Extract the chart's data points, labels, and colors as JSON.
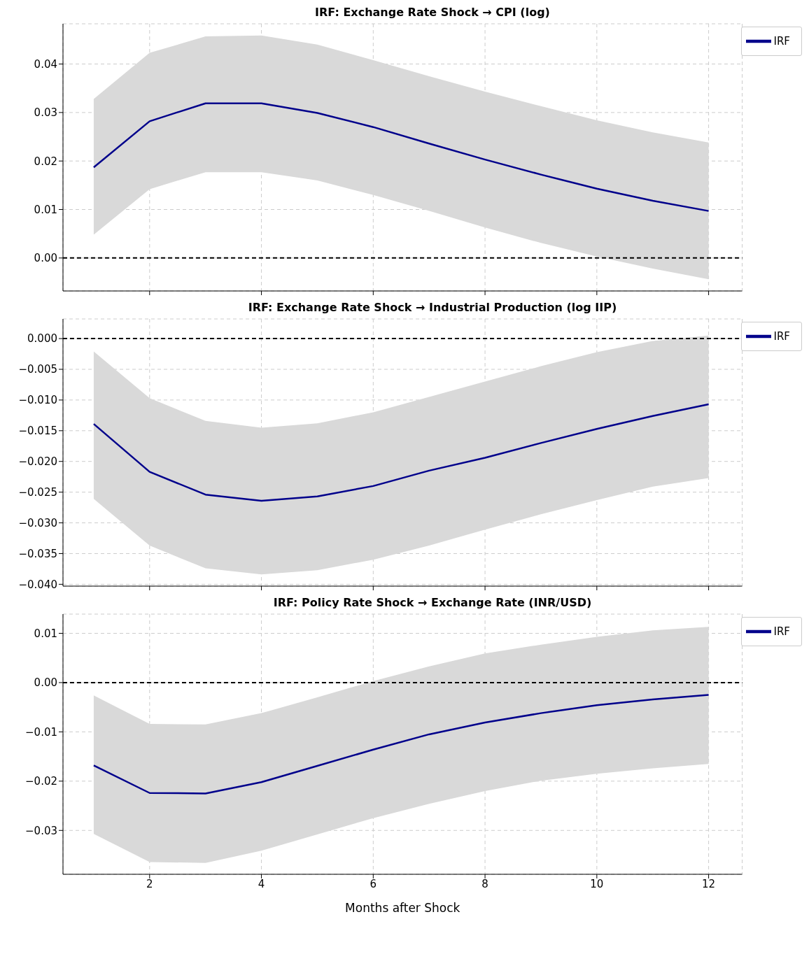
{
  "chart_data": [
    {
      "type": "line",
      "title": "IRF: Exchange Rate Shock → CPI (log)",
      "x": [
        1,
        2,
        3,
        4,
        5,
        6,
        7,
        8,
        9,
        10,
        11,
        12
      ],
      "xlim": [
        0.45,
        12.6
      ],
      "xticks": [
        2,
        4,
        6,
        8,
        10,
        12
      ],
      "ylim": [
        -0.0068,
        0.0483
      ],
      "yticks": [
        {
          "value": 0,
          "label": "0.00"
        },
        {
          "value": 0.01,
          "label": "0.01"
        },
        {
          "value": 0.02,
          "label": "0.02"
        },
        {
          "value": 0.03,
          "label": "0.03"
        },
        {
          "value": 0.04,
          "label": "0.04"
        }
      ],
      "tick_labels": "y",
      "grid": true,
      "legend": "top right",
      "marker": "none",
      "line_style": "solid",
      "series": [
        {
          "name": "IRF",
          "color": "#00008b",
          "values": [
            0.0187,
            0.0282,
            0.0319,
            0.0319,
            0.0299,
            0.027,
            0.0236,
            0.0203,
            0.0172,
            0.0143,
            0.0118,
            0.0097
          ],
          "lower": [
            0.0048,
            0.0142,
            0.0177,
            0.0177,
            0.016,
            0.013,
            0.0097,
            0.0063,
            0.0031,
            0.0003,
            -0.0022,
            -0.0044
          ],
          "upper": [
            0.0328,
            0.0423,
            0.0457,
            0.0459,
            0.044,
            0.0408,
            0.0375,
            0.0343,
            0.0313,
            0.0284,
            0.0259,
            0.0238
          ]
        }
      ],
      "ref_lines": [
        {
          "axis": "y",
          "value": 0,
          "color": "#000000",
          "line_style": "dashed"
        }
      ]
    },
    {
      "type": "line",
      "title": "IRF: Exchange Rate Shock → Industrial Production (log IIP)",
      "x": [
        1,
        2,
        3,
        4,
        5,
        6,
        7,
        8,
        9,
        10,
        11,
        12
      ],
      "xlim": [
        0.45,
        12.6
      ],
      "xticks": [
        2,
        4,
        6,
        8,
        10,
        12
      ],
      "ylim": [
        -0.0403,
        0.0032
      ],
      "yticks": [
        {
          "value": -0.04,
          "label": "−0.040"
        },
        {
          "value": -0.035,
          "label": "−0.035"
        },
        {
          "value": -0.03,
          "label": "−0.030"
        },
        {
          "value": -0.025,
          "label": "−0.025"
        },
        {
          "value": -0.02,
          "label": "−0.020"
        },
        {
          "value": -0.015,
          "label": "−0.015"
        },
        {
          "value": -0.01,
          "label": "−0.010"
        },
        {
          "value": -0.005,
          "label": "−0.005"
        },
        {
          "value": 0,
          "label": "0.000"
        }
      ],
      "tick_labels": "y",
      "grid": true,
      "legend": "top right",
      "marker": "none",
      "line_style": "solid",
      "series": [
        {
          "name": "IRF",
          "color": "#00008b",
          "values": [
            -0.0139,
            -0.0217,
            -0.0254,
            -0.0264,
            -0.0257,
            -0.024,
            -0.0215,
            -0.0194,
            -0.017,
            -0.0147,
            -0.0126,
            -0.0107
          ],
          "lower": [
            -0.0261,
            -0.0337,
            -0.0374,
            -0.0384,
            -0.0377,
            -0.036,
            -0.0337,
            -0.0311,
            -0.0286,
            -0.0263,
            -0.0241,
            -0.0227
          ],
          "upper": [
            -0.0021,
            -0.0097,
            -0.0134,
            -0.0145,
            -0.0138,
            -0.012,
            -0.0095,
            -0.007,
            -0.0045,
            -0.0022,
            -0.0004,
            0.0005
          ]
        }
      ],
      "ref_lines": [
        {
          "axis": "y",
          "value": 0,
          "color": "#000000",
          "line_style": "dashed"
        }
      ]
    },
    {
      "type": "line",
      "title": "IRF: Policy Rate Shock → Exchange Rate (INR/USD)",
      "xlabel": "Months after Shock",
      "x": [
        1,
        2,
        3,
        4,
        5,
        6,
        7,
        8,
        9,
        10,
        11,
        12
      ],
      "xlim": [
        0.45,
        12.6
      ],
      "xticks": [
        2,
        4,
        6,
        8,
        10,
        12
      ],
      "ylim": [
        -0.0389,
        0.0139
      ],
      "yticks": [
        {
          "value": -0.03,
          "label": "−0.03"
        },
        {
          "value": -0.02,
          "label": "−0.02"
        },
        {
          "value": -0.01,
          "label": "−0.01"
        },
        {
          "value": 0,
          "label": "0.00"
        },
        {
          "value": 0.01,
          "label": "0.01"
        }
      ],
      "grid": true,
      "legend": "top right",
      "marker": "none",
      "line_style": "solid",
      "series": [
        {
          "name": "IRF",
          "color": "#00008b",
          "values": [
            -0.0168,
            -0.0224,
            -0.0225,
            -0.0202,
            -0.0169,
            -0.0136,
            -0.0105,
            -0.0081,
            -0.0062,
            -0.0046,
            -0.0034,
            -0.0025
          ],
          "lower": [
            -0.0307,
            -0.0364,
            -0.0366,
            -0.0341,
            -0.0308,
            -0.0275,
            -0.0246,
            -0.022,
            -0.0199,
            -0.0185,
            -0.0174,
            -0.0165
          ],
          "upper": [
            -0.0026,
            -0.0084,
            -0.0085,
            -0.0062,
            -0.003,
            0.0003,
            0.0033,
            0.0059,
            0.0077,
            0.0093,
            0.0106,
            0.0113
          ]
        }
      ],
      "ref_lines": [
        {
          "axis": "y",
          "value": 0,
          "color": "#000000",
          "line_style": "dashed"
        }
      ]
    }
  ]
}
